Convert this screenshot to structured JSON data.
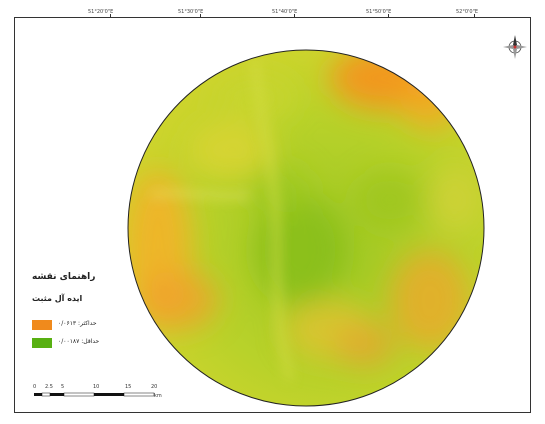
{
  "map": {
    "top_tick_labels": [
      "51°20'0\"E",
      "51°30'0\"E",
      "51°40'0\"E",
      "51°50'0\"E",
      "52°0'0\"E"
    ],
    "legend": {
      "title": "راهنمای نقشه",
      "subtitle": "ایده آل مثبت",
      "max_label": "حداکثر: ۰/۰۶۱۳",
      "min_label": "حداقل: ۰/۰۰۱۸۷",
      "max_color": "#f08a1c",
      "min_color": "#58b012"
    },
    "scale_bar": {
      "labels": [
        "0",
        "2.5",
        "5",
        "10",
        "15",
        "20"
      ],
      "unit": "km"
    },
    "north_arrow": "compass-rose-icon"
  }
}
